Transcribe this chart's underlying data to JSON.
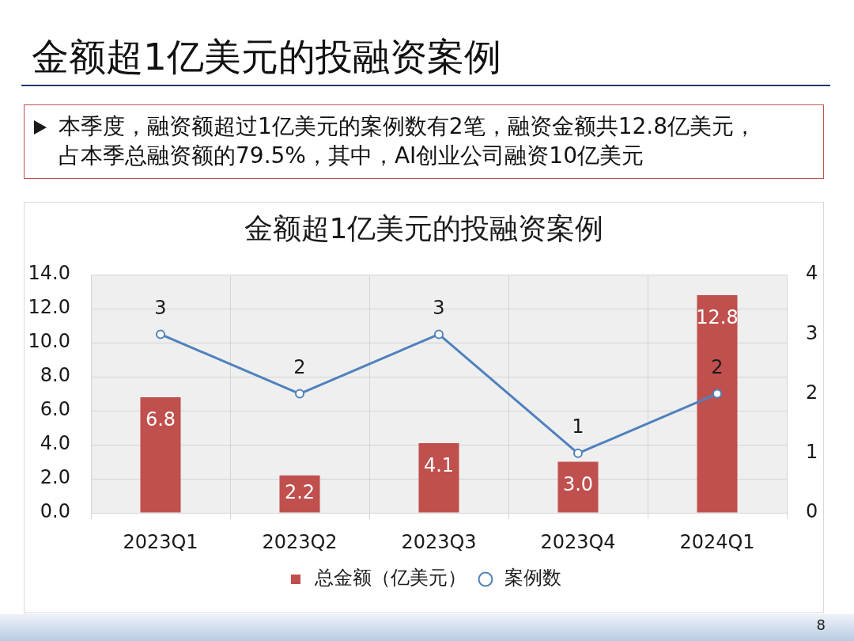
{
  "chart_data": {
    "type": "bar",
    "title": "金额超1亿美元的投融资案例",
    "categories": [
      "2023Q1",
      "2023Q2",
      "2023Q3",
      "2023Q4",
      "2024Q1"
    ],
    "series": [
      {
        "name": "总金额（亿美元）",
        "color": "#c0504d",
        "values": [
          6.8,
          2.2,
          4.1,
          3.0,
          12.8
        ],
        "value_labels": [
          "6.8",
          "2.2",
          "4.1",
          "3.0",
          "12.8"
        ]
      },
      {
        "name": "案例数",
        "type": "line",
        "axis": "y2",
        "color": "#4f81bd",
        "values": [
          3,
          2,
          3,
          1,
          2
        ],
        "value_labels": [
          "3",
          "2",
          "3",
          "1",
          "2"
        ]
      }
    ],
    "ylim": [
      0,
      14
    ],
    "yticks": [
      {
        "value": 0,
        "label": "0.0"
      },
      {
        "value": 2,
        "label": "2.0"
      },
      {
        "value": 4,
        "label": "4.0"
      },
      {
        "value": 6,
        "label": "6.0"
      },
      {
        "value": 8,
        "label": "8.0"
      },
      {
        "value": 10,
        "label": "10.0"
      },
      {
        "value": 12,
        "label": "12.0"
      },
      {
        "value": 14,
        "label": "14.0"
      }
    ],
    "y2lim": [
      0,
      4
    ],
    "y2ticks": [
      0,
      1,
      2,
      3,
      4
    ],
    "grid": true,
    "legend": "bottom",
    "marker": "circle",
    "annotations": [
      "金额超1亿美元的投融资案例",
      "本季度，融资额超过1亿美元的案例数有2笔，融资金额共12.8亿美元，占本季总融资额的79.5%，其中，AI创业公司融资10亿美元",
      "8"
    ]
  }
}
